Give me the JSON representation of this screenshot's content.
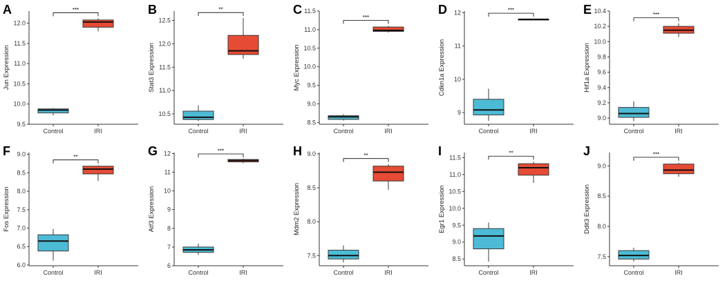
{
  "colors": {
    "control": "#4DBBD5",
    "iri": "#E64B35",
    "outline": "#3a3a3a",
    "axis": "#333333"
  },
  "chart_data": [
    {
      "type": "boxplot",
      "panel": "A",
      "ylabel": "Jun Expression",
      "categories": [
        "Control",
        "IRI"
      ],
      "ylim": [
        9.5,
        12.3
      ],
      "yticks": [
        "9.5",
        "10.0",
        "10.5",
        "11.0",
        "11.5",
        "12.0"
      ],
      "boxes": [
        {
          "group": "Control",
          "min": 9.72,
          "q1": 9.78,
          "median": 9.85,
          "q3": 9.88,
          "max": 9.9
        },
        {
          "group": "IRI",
          "min": 11.8,
          "q1": 11.9,
          "median": 12.03,
          "q3": 12.08,
          "max": 12.12
        }
      ],
      "significance": "***"
    },
    {
      "type": "boxplot",
      "panel": "B",
      "ylabel": "Stat3 Expression",
      "categories": [
        "Control",
        "IRI"
      ],
      "ylim": [
        10.28,
        12.7
      ],
      "yticks": [
        "10.5",
        "11.0",
        "11.5",
        "12.0",
        "12.5"
      ],
      "boxes": [
        {
          "group": "Control",
          "min": 10.35,
          "q1": 10.38,
          "median": 10.43,
          "q3": 10.56,
          "max": 10.68
        },
        {
          "group": "IRI",
          "min": 11.68,
          "q1": 11.77,
          "median": 11.85,
          "q3": 12.18,
          "max": 12.55
        }
      ],
      "significance": "**"
    },
    {
      "type": "boxplot",
      "panel": "C",
      "ylabel": "Myc Expression",
      "categories": [
        "Control",
        "IRI"
      ],
      "ylim": [
        8.45,
        11.5
      ],
      "yticks": [
        "8.5",
        "9.0",
        "9.5",
        "10.0",
        "10.5",
        "11.0",
        "11.5"
      ],
      "boxes": [
        {
          "group": "Control",
          "min": 8.55,
          "q1": 8.58,
          "median": 8.65,
          "q3": 8.68,
          "max": 8.72
        },
        {
          "group": "IRI",
          "min": 10.92,
          "q1": 10.95,
          "median": 10.98,
          "q3": 11.07,
          "max": 11.1
        }
      ],
      "significance": "***"
    },
    {
      "type": "boxplot",
      "panel": "D",
      "ylabel": "Cdkn1a Expression",
      "categories": [
        "Control",
        "IRI"
      ],
      "ylim": [
        8.65,
        12.05
      ],
      "yticks": [
        "9",
        "10",
        "11",
        "12"
      ],
      "boxes": [
        {
          "group": "Control",
          "min": 8.75,
          "q1": 8.93,
          "median": 9.08,
          "q3": 9.4,
          "max": 9.72
        },
        {
          "group": "IRI",
          "min": 11.78,
          "q1": 11.79,
          "median": 11.8,
          "q3": 11.81,
          "max": 11.82
        }
      ],
      "significance": "***"
    },
    {
      "type": "boxplot",
      "panel": "E",
      "ylabel": "Hif1a Expression",
      "categories": [
        "Control",
        "IRI"
      ],
      "ylim": [
        8.92,
        10.4
      ],
      "yticks": [
        "9.0",
        "9.2",
        "9.4",
        "9.6",
        "9.8",
        "10.0",
        "10.2",
        "10.4"
      ],
      "boxes": [
        {
          "group": "Control",
          "min": 8.96,
          "q1": 9.01,
          "median": 9.06,
          "q3": 9.14,
          "max": 9.22
        },
        {
          "group": "IRI",
          "min": 10.06,
          "q1": 10.11,
          "median": 10.15,
          "q3": 10.2,
          "max": 10.24
        }
      ],
      "significance": "***"
    },
    {
      "type": "boxplot",
      "panel": "F",
      "ylabel": "Fos Expression",
      "categories": [
        "Control",
        "IRI"
      ],
      "ylim": [
        5.98,
        9.05
      ],
      "yticks": [
        "6.0",
        "6.5",
        "7.0",
        "7.5",
        "8.0",
        "8.5",
        "9.0"
      ],
      "boxes": [
        {
          "group": "Control",
          "min": 6.12,
          "q1": 6.38,
          "median": 6.65,
          "q3": 6.82,
          "max": 6.98
        },
        {
          "group": "IRI",
          "min": 8.28,
          "q1": 8.47,
          "median": 8.6,
          "q3": 8.68,
          "max": 8.7
        }
      ],
      "significance": "**"
    },
    {
      "type": "boxplot",
      "panel": "G",
      "ylabel": "Atf3 Expression",
      "categories": [
        "Control",
        "IRI"
      ],
      "ylim": [
        6.0,
        12.05
      ],
      "yticks": [
        "6",
        "7",
        "8",
        "9",
        "10",
        "11",
        "12"
      ],
      "boxes": [
        {
          "group": "Control",
          "min": 6.58,
          "q1": 6.72,
          "median": 6.85,
          "q3": 7.0,
          "max": 7.18
        },
        {
          "group": "IRI",
          "min": 11.48,
          "q1": 11.55,
          "median": 11.62,
          "q3": 11.68,
          "max": 11.72
        }
      ],
      "significance": "***"
    },
    {
      "type": "boxplot",
      "panel": "H",
      "ylabel": "Mdm2 Expression",
      "categories": [
        "Control",
        "IRI"
      ],
      "ylim": [
        7.35,
        9.02
      ],
      "yticks": [
        "7.5",
        "8.0",
        "8.5",
        "9.0"
      ],
      "boxes": [
        {
          "group": "Control",
          "min": 7.4,
          "q1": 7.45,
          "median": 7.5,
          "q3": 7.58,
          "max": 7.65
        },
        {
          "group": "IRI",
          "min": 8.47,
          "q1": 8.6,
          "median": 8.73,
          "q3": 8.82,
          "max": 8.85
        }
      ],
      "significance": "**"
    },
    {
      "type": "boxplot",
      "panel": "I",
      "ylabel": "Egr1 Expression",
      "categories": [
        "Control",
        "IRI"
      ],
      "ylim": [
        8.3,
        11.65
      ],
      "yticks": [
        "8.5",
        "9.0",
        "9.5",
        "10.0",
        "10.5",
        "11.0",
        "11.5"
      ],
      "boxes": [
        {
          "group": "Control",
          "min": 8.42,
          "q1": 8.8,
          "median": 9.18,
          "q3": 9.4,
          "max": 9.58
        },
        {
          "group": "IRI",
          "min": 10.75,
          "q1": 10.98,
          "median": 11.2,
          "q3": 11.32,
          "max": 11.38
        }
      ],
      "significance": "**"
    },
    {
      "type": "boxplot",
      "panel": "J",
      "ylabel": "Ddit3 Expression",
      "categories": [
        "Control",
        "IRI"
      ],
      "ylim": [
        7.35,
        9.22
      ],
      "yticks": [
        "7.5",
        "8.0",
        "8.5",
        "9.0"
      ],
      "boxes": [
        {
          "group": "Control",
          "min": 7.42,
          "q1": 7.46,
          "median": 7.52,
          "q3": 7.6,
          "max": 7.65
        },
        {
          "group": "IRI",
          "min": 8.82,
          "q1": 8.87,
          "median": 8.93,
          "q3": 9.03,
          "max": 9.05
        }
      ],
      "significance": "***"
    }
  ]
}
